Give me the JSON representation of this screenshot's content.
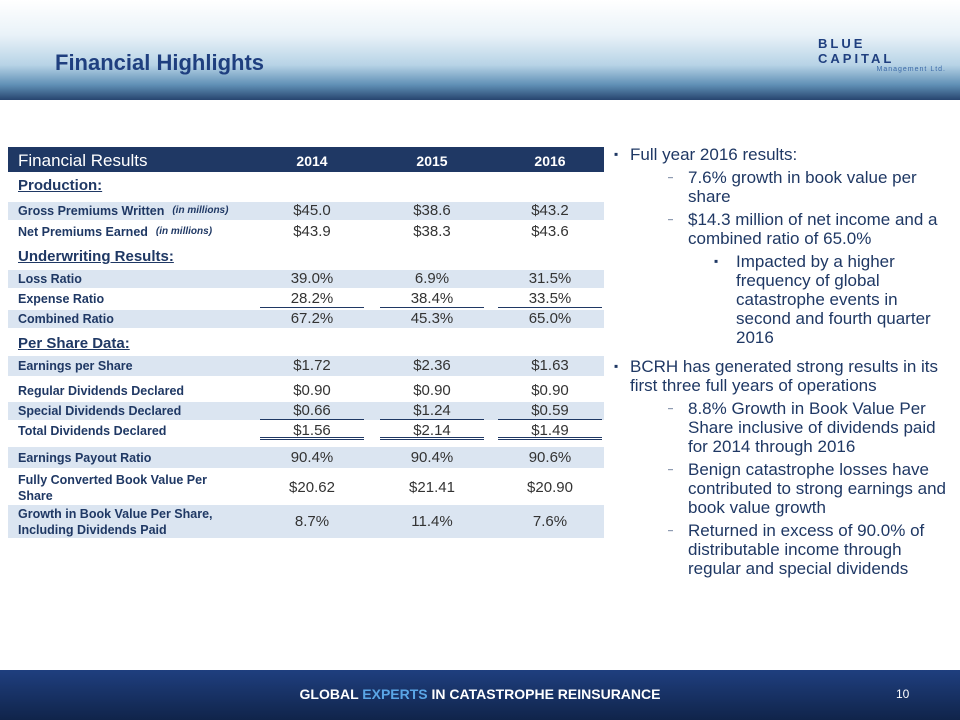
{
  "header": {
    "title": "Financial Highlights",
    "logo": {
      "name": "BLUE CAPITAL",
      "subtitle": "Management Ltd."
    }
  },
  "table": {
    "title": "Financial Results",
    "columns": [
      "2014",
      "2015",
      "2016"
    ],
    "rows": [
      {
        "section": "Production:"
      },
      {
        "label": "Gross Premiums Written",
        "note": "(in millions)",
        "values": [
          "$45.0",
          "$38.6",
          "$43.2"
        ]
      },
      {
        "label": "Net Premiums Earned",
        "note": "(in millions)",
        "values": [
          "$43.9",
          "$38.3",
          "$43.6"
        ]
      },
      {
        "section": "Underwriting Results:"
      },
      {
        "label": "Loss Ratio",
        "values": [
          "39.0%",
          "6.9%",
          "31.5%"
        ]
      },
      {
        "label": "Expense Ratio",
        "values": [
          "28.2%",
          "38.4%",
          "33.5%"
        ]
      },
      {
        "label": "Combined Ratio",
        "values": [
          "67.2%",
          "45.3%",
          "65.0%"
        ]
      },
      {
        "section": "Per Share Data:"
      },
      {
        "label": "Earnings per Share",
        "values": [
          "$1.72",
          "$2.36",
          "$1.63"
        ]
      },
      {
        "label": "Regular Dividends Declared",
        "values": [
          "$0.90",
          "$0.90",
          "$0.90"
        ]
      },
      {
        "label": "Special Dividends Declared",
        "values": [
          "$0.66",
          "$1.24",
          "$0.59"
        ]
      },
      {
        "label": "Total Dividends Declared",
        "values": [
          "$1.56",
          "$2.14",
          "$1.49"
        ]
      },
      {
        "label": "Earnings Payout Ratio",
        "values": [
          "90.4%",
          "90.4%",
          "90.6%"
        ]
      },
      {
        "label": "Fully Converted Book Value Per Share",
        "values": [
          "$20.62",
          "$21.41",
          "$20.90"
        ]
      },
      {
        "label": "Growth in Book Value Per Share, Including Dividends Paid",
        "values": [
          "8.7%",
          "11.4%",
          "7.6%"
        ]
      }
    ]
  },
  "bullets": [
    {
      "level": 1,
      "text": "Full year 2016 results:"
    },
    {
      "level": 2,
      "text": "7.6% growth in book value per share"
    },
    {
      "level": 2,
      "text": "$14.3 million of net income and a combined ratio of 65.0%"
    },
    {
      "level": 3,
      "text": "Impacted by a higher frequency of global catastrophe events in second and fourth quarter 2016"
    },
    {
      "level": 1,
      "text": "BCRH has generated strong results in its first three full years of operations"
    },
    {
      "level": 2,
      "text": "8.8% Growth in Book Value Per Share inclusive of dividends paid for 2014 through 2016"
    },
    {
      "level": 2,
      "text": "Benign catastrophe losses have contributed to strong earnings and book value growth"
    },
    {
      "level": 2,
      "text": "Returned in excess of 90.0% of distributable income through regular and special dividends"
    }
  ],
  "footer": {
    "tagline": {
      "part1": "GLOBAL",
      "highlight": "EXPERTS",
      "part2": "IN CATASTROPHE REINSURANCE"
    },
    "page": "10"
  }
}
